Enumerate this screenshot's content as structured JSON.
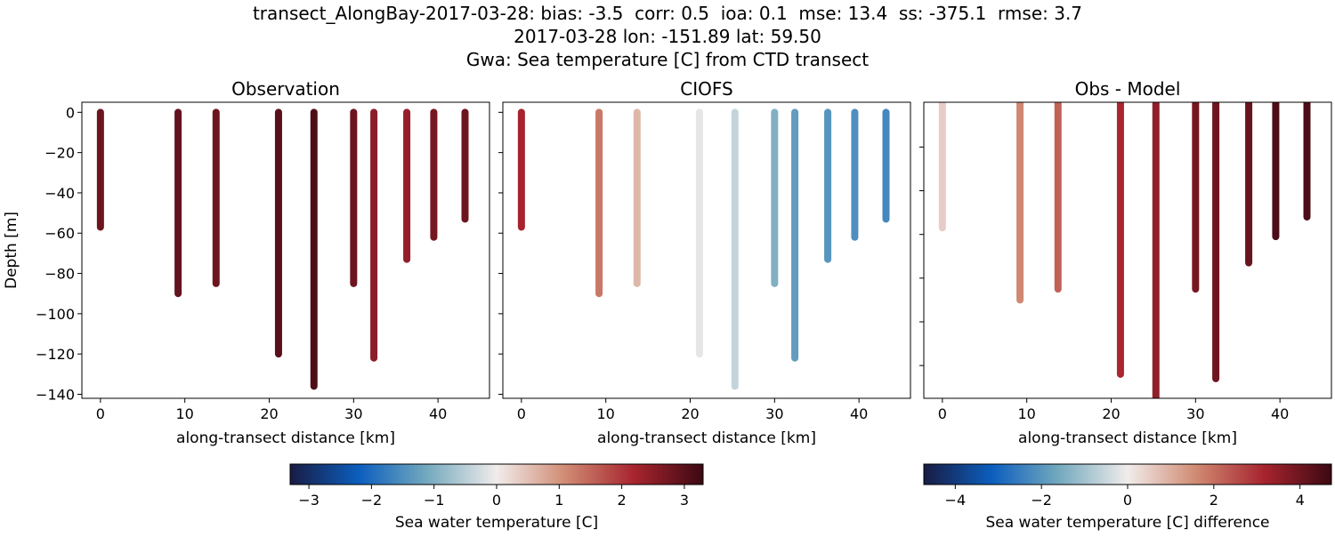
{
  "title_lines": [
    "transect_AlongBay-2017-03-28: bias: -3.5  corr: 0.5  ioa: 0.1  mse: 13.4  ss: -375.1  rmse: 3.7",
    "2017-03-28 lon: -151.89 lat: 59.50",
    "Gwa: Sea temperature [C] from CTD transect"
  ],
  "colormap": {
    "name": "balance",
    "stops": [
      "#181c43",
      "#0c5ebe",
      "#75aabe",
      "#f1eceb",
      "#d08b73",
      "#a7242f",
      "#3c0912"
    ]
  },
  "chart_data": [
    {
      "type": "scatter",
      "title": "Observation",
      "xlabel": "along-transect distance [km]",
      "ylabel": "Depth [m]",
      "xlim": [
        -2.2,
        46.1
      ],
      "ylim": [
        -142,
        5
      ],
      "xticks": [
        0,
        10,
        20,
        30,
        40
      ],
      "yticks": [
        0,
        -20,
        -40,
        -60,
        -80,
        -100,
        -120,
        -140
      ],
      "show_yticklabels": true,
      "color_range": [
        -3.3,
        3.3
      ],
      "profiles": [
        {
          "x": 0,
          "bottom_depth": -57,
          "value": 2.8
        },
        {
          "x": 9.2,
          "bottom_depth": -90,
          "value": 2.9
        },
        {
          "x": 13.7,
          "bottom_depth": -85,
          "value": 2.8
        },
        {
          "x": 21.1,
          "bottom_depth": -120,
          "value": 3.0
        },
        {
          "x": 25.3,
          "bottom_depth": -136,
          "value": 3.1
        },
        {
          "x": 30.0,
          "bottom_depth": -85,
          "value": 2.8
        },
        {
          "x": 32.4,
          "bottom_depth": -122,
          "value": 2.5
        },
        {
          "x": 36.3,
          "bottom_depth": -73,
          "value": 2.4
        },
        {
          "x": 39.5,
          "bottom_depth": -62,
          "value": 2.7
        },
        {
          "x": 43.2,
          "bottom_depth": -53,
          "value": 2.8
        }
      ]
    },
    {
      "type": "scatter",
      "title": "CIOFS",
      "xlabel": "along-transect distance [km]",
      "ylabel": "",
      "xlim": [
        -2.2,
        46.1
      ],
      "ylim": [
        -142,
        5
      ],
      "xticks": [
        0,
        10,
        20,
        30,
        40
      ],
      "yticks": [
        0,
        -20,
        -40,
        -60,
        -80,
        -100,
        -120,
        -140
      ],
      "show_yticklabels": false,
      "color_range": [
        -3.3,
        3.3
      ],
      "profiles": [
        {
          "x": 0,
          "bottom_depth": -57,
          "value": 2.2
        },
        {
          "x": 9.2,
          "bottom_depth": -90,
          "value": 1.3
        },
        {
          "x": 13.7,
          "bottom_depth": -85,
          "value": 0.6
        },
        {
          "x": 21.1,
          "bottom_depth": -120,
          "value": -0.1
        },
        {
          "x": 25.3,
          "bottom_depth": -136,
          "value": -0.4
        },
        {
          "x": 30.0,
          "bottom_depth": -85,
          "value": -1.0
        },
        {
          "x": 32.4,
          "bottom_depth": -122,
          "value": -1.3
        },
        {
          "x": 36.3,
          "bottom_depth": -73,
          "value": -1.4
        },
        {
          "x": 39.5,
          "bottom_depth": -62,
          "value": -1.5
        },
        {
          "x": 43.2,
          "bottom_depth": -53,
          "value": -1.6
        }
      ]
    },
    {
      "type": "scatter",
      "title": "Obs - Model",
      "xlabel": "along-transect distance [km]",
      "ylabel": "",
      "xlim": [
        -2.2,
        46.1
      ],
      "ylim": [
        -135,
        0.5
      ],
      "xticks": [
        0,
        10,
        20,
        30,
        40
      ],
      "yticks": [
        -20,
        -40,
        -60,
        -80,
        -100,
        -120
      ],
      "show_yticklabels": false,
      "color_range": [
        -4.73,
        4.73
      ],
      "profiles": [
        {
          "x": 0,
          "bottom_depth": -57,
          "value": 0.5
        },
        {
          "x": 9.2,
          "bottom_depth": -90,
          "value": 1.6
        },
        {
          "x": 13.7,
          "bottom_depth": -85,
          "value": 2.2
        },
        {
          "x": 21.1,
          "bottom_depth": -124,
          "value": 3.1
        },
        {
          "x": 25.3,
          "bottom_depth": -136,
          "value": 3.5
        },
        {
          "x": 30.0,
          "bottom_depth": -85,
          "value": 3.9
        },
        {
          "x": 32.4,
          "bottom_depth": -126,
          "value": 4.0
        },
        {
          "x": 36.3,
          "bottom_depth": -73,
          "value": 4.1
        },
        {
          "x": 39.5,
          "bottom_depth": -61,
          "value": 4.5
        },
        {
          "x": 43.2,
          "bottom_depth": -52,
          "value": 4.5
        }
      ]
    }
  ],
  "colorbars": [
    {
      "label": "Sea water temperature [C]",
      "range": [
        -3.3,
        3.3
      ],
      "ticks": [
        -3,
        -2,
        -1,
        0,
        1,
        2,
        3
      ]
    },
    {
      "label": "Sea water temperature [C] difference",
      "range": [
        -4.73,
        4.73
      ],
      "ticks": [
        -4,
        -2,
        0,
        2,
        4
      ]
    }
  ]
}
